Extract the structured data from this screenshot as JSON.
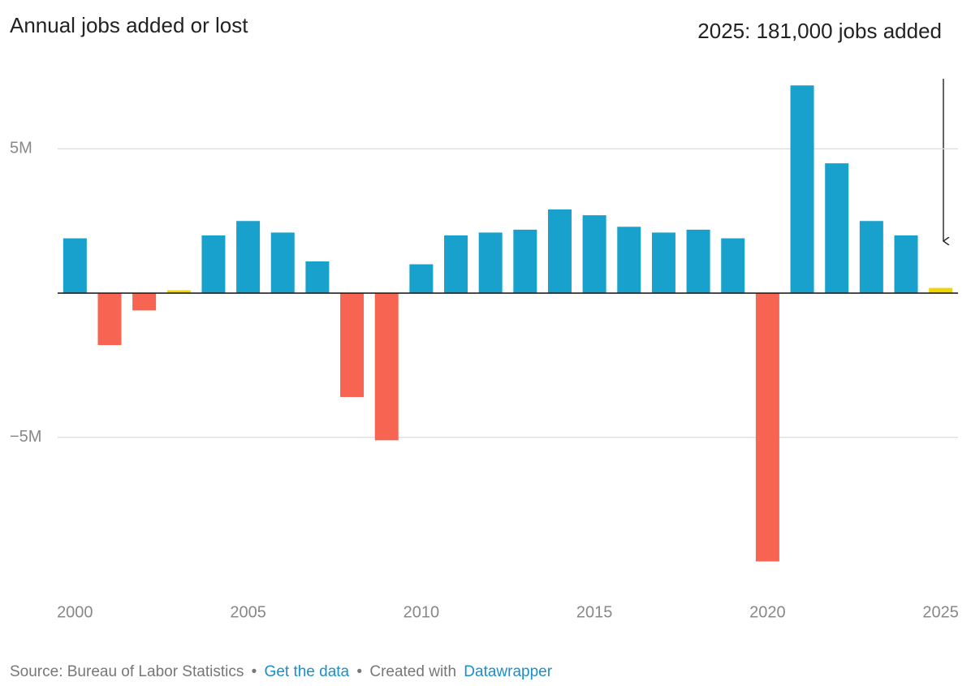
{
  "chart_data": {
    "type": "bar",
    "title": "Annual jobs added or lost",
    "annotation": "2025: 181,000 jobs added",
    "x": [
      2000,
      2001,
      2002,
      2003,
      2004,
      2005,
      2006,
      2007,
      2008,
      2009,
      2010,
      2011,
      2012,
      2013,
      2014,
      2015,
      2016,
      2017,
      2018,
      2019,
      2020,
      2021,
      2022,
      2023,
      2024,
      2025
    ],
    "values": [
      1.9,
      -1.8,
      -0.6,
      0.1,
      2.0,
      2.5,
      2.1,
      1.1,
      -3.6,
      -5.1,
      1.0,
      2.0,
      2.1,
      2.2,
      2.9,
      2.7,
      2.3,
      2.1,
      2.2,
      1.9,
      -9.3,
      7.2,
      4.5,
      2.5,
      2.0,
      0.181
    ],
    "colors": [
      "#18a1cd",
      "#f76552",
      "#f76552",
      "#f2d600",
      "#18a1cd",
      "#18a1cd",
      "#18a1cd",
      "#18a1cd",
      "#f76552",
      "#f76552",
      "#18a1cd",
      "#18a1cd",
      "#18a1cd",
      "#18a1cd",
      "#18a1cd",
      "#18a1cd",
      "#18a1cd",
      "#18a1cd",
      "#18a1cd",
      "#18a1cd",
      "#f76552",
      "#18a1cd",
      "#18a1cd",
      "#18a1cd",
      "#18a1cd",
      "#f2d600"
    ],
    "xlim": [
      1999.5,
      2025.5
    ],
    "xticks": [
      2000,
      2005,
      2010,
      2015,
      2020,
      2025
    ],
    "ylim": [
      -10.1,
      7.6
    ],
    "yticks": [
      {
        "value": -5,
        "label": "−5M"
      },
      {
        "value": 5,
        "label": "5M"
      }
    ],
    "grid": true,
    "footer": {
      "source": "Source: Bureau of Labor Statistics",
      "separator": "•",
      "link": "Get the data",
      "created": "Created with",
      "tool": "Datawrapper"
    }
  }
}
